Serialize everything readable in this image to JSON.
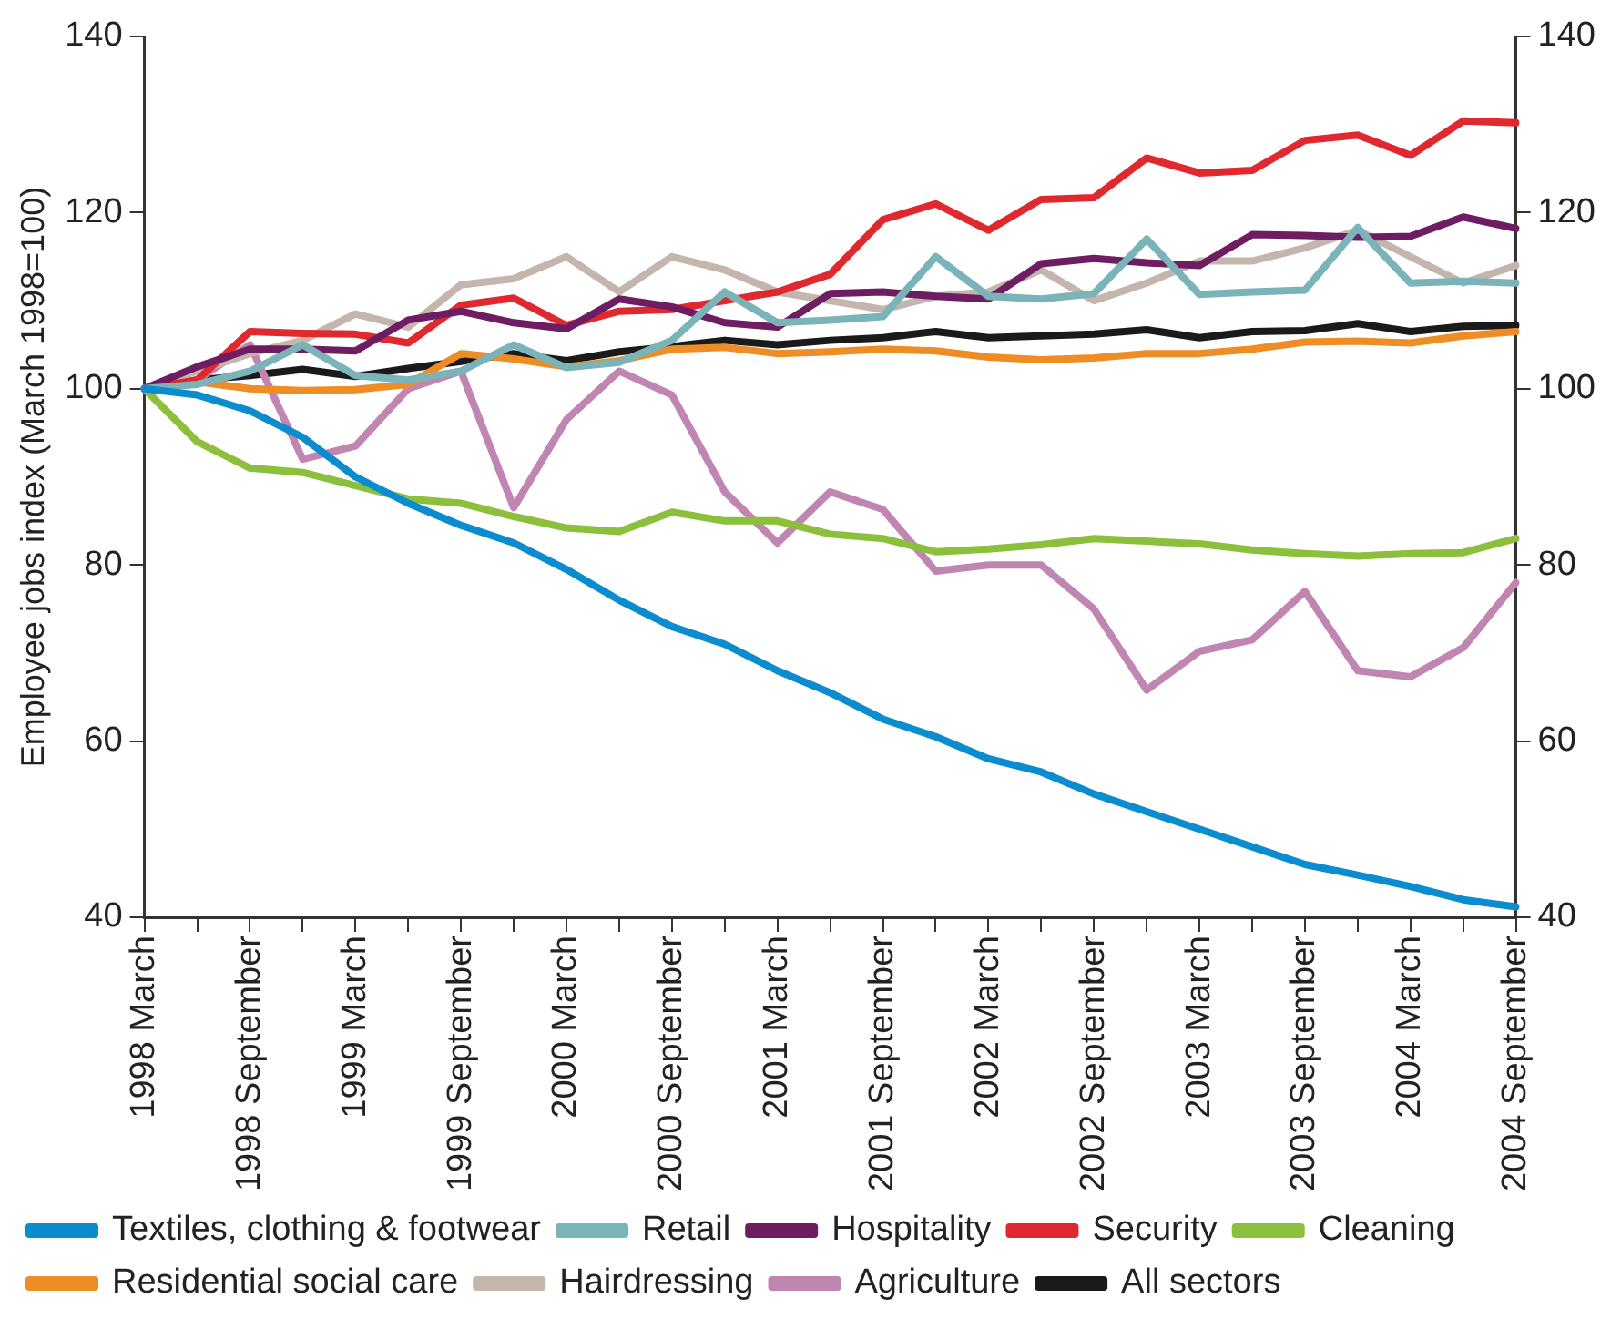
{
  "chart_data": {
    "type": "line",
    "ylabel": "Employee jobs index (March 1998=100)",
    "categories": [
      "1998 March",
      null,
      "1998 September",
      null,
      "1999 March",
      null,
      "1999 September",
      null,
      "2000 March",
      null,
      "2000 September",
      null,
      "2001 March",
      null,
      "2001 September",
      null,
      "2002 March",
      null,
      "2002 September",
      null,
      "2003 March",
      null,
      "2003 September",
      null,
      "2004 March",
      null,
      "2004 September"
    ],
    "ylim": [
      40,
      140
    ],
    "yticks": [
      40,
      60,
      80,
      100,
      120,
      140
    ],
    "y2lim": [
      40,
      140
    ],
    "y2ticks": [
      40,
      60,
      80,
      100,
      120,
      140
    ],
    "grid": false,
    "legend": "bottom",
    "marker": "none",
    "line_style": "solid",
    "series": [
      {
        "name": "Textiles, clothing & footwear",
        "color": "#0a8ccf",
        "values": [
          100,
          99.3,
          97.5,
          94.5,
          90,
          87,
          84.5,
          82.5,
          79.5,
          76,
          73,
          71,
          68,
          65.5,
          62.5,
          60.5,
          58,
          56.5,
          54,
          52,
          50,
          48,
          46,
          44.8,
          43.5,
          42,
          41.2
        ]
      },
      {
        "name": "Retail",
        "color": "#7ab3b8",
        "values": [
          100,
          100.5,
          102,
          105,
          101.5,
          101,
          102,
          105,
          102.4,
          103,
          105.5,
          111,
          107.5,
          107.8,
          108.2,
          115,
          110.5,
          110.2,
          110.8,
          117,
          110.7,
          111,
          111.2,
          118.3,
          112,
          112.2,
          112
        ]
      },
      {
        "name": "Hospitality",
        "color": "#6f1d62",
        "values": [
          100,
          102.5,
          104.5,
          104.5,
          104.3,
          107.8,
          108.8,
          107.5,
          106.8,
          110.2,
          109.3,
          107.5,
          107,
          110.8,
          111,
          110.5,
          110.2,
          114.2,
          114.8,
          114.3,
          114,
          117.5,
          117.4,
          117.2,
          117.3,
          119.5,
          118.2
        ]
      },
      {
        "name": "Security",
        "color": "#e0292e",
        "values": [
          100,
          101,
          106.5,
          106.3,
          106.2,
          105.2,
          109.5,
          110.3,
          107.2,
          108.8,
          109,
          110,
          111,
          113,
          119.2,
          121,
          118,
          121.5,
          121.7,
          126.2,
          124.5,
          124.8,
          128.2,
          128.8,
          126.5,
          130.4,
          130.2
        ]
      },
      {
        "name": "Cleaning",
        "color": "#8bbf3c",
        "values": [
          100,
          94,
          91,
          90.5,
          89,
          87.5,
          87,
          85.5,
          84.2,
          83.8,
          86,
          85,
          85,
          83.5,
          83,
          81.5,
          81.8,
          82.3,
          83,
          82.7,
          82.4,
          81.7,
          81.3,
          81,
          81.3,
          81.4,
          83
        ]
      },
      {
        "name": "Residential social care",
        "color": "#ee8c25",
        "values": [
          100,
          100.8,
          100,
          99.8,
          99.9,
          100.5,
          104,
          103.4,
          102.5,
          103.2,
          104.5,
          104.7,
          104,
          104.2,
          104.5,
          104.3,
          103.6,
          103.3,
          103.5,
          104,
          104,
          104.5,
          105.3,
          105.4,
          105.2,
          106,
          106.5
        ]
      },
      {
        "name": "Hairdressing",
        "color": "#c4b5ad",
        "values": [
          100,
          102,
          104,
          105.5,
          108.5,
          107,
          111.8,
          112.5,
          115,
          111,
          115,
          113.5,
          111,
          110,
          109,
          110.5,
          111,
          113.5,
          110,
          112,
          114.5,
          114.5,
          116,
          118,
          115,
          112,
          114
        ]
      },
      {
        "name": "Agriculture",
        "color": "#c085b0",
        "values": [
          100,
          101,
          105,
          92,
          93.5,
          100,
          102,
          86.5,
          96.5,
          102,
          99.3,
          88.3,
          82.5,
          88.3,
          86.3,
          79.3,
          80,
          80,
          75,
          65.8,
          70.2,
          71.5,
          77,
          68,
          67.3,
          70.6,
          78
        ]
      },
      {
        "name": "All sectors",
        "color": "#1a1a1a",
        "values": [
          100,
          101,
          101.5,
          102.2,
          101.4,
          102.3,
          103.1,
          104,
          103.2,
          104.2,
          104.8,
          105.5,
          105,
          105.5,
          105.8,
          106.5,
          105.8,
          106,
          106.2,
          106.7,
          105.8,
          106.5,
          106.6,
          107.4,
          106.5,
          107.1,
          107.2
        ]
      }
    ]
  }
}
